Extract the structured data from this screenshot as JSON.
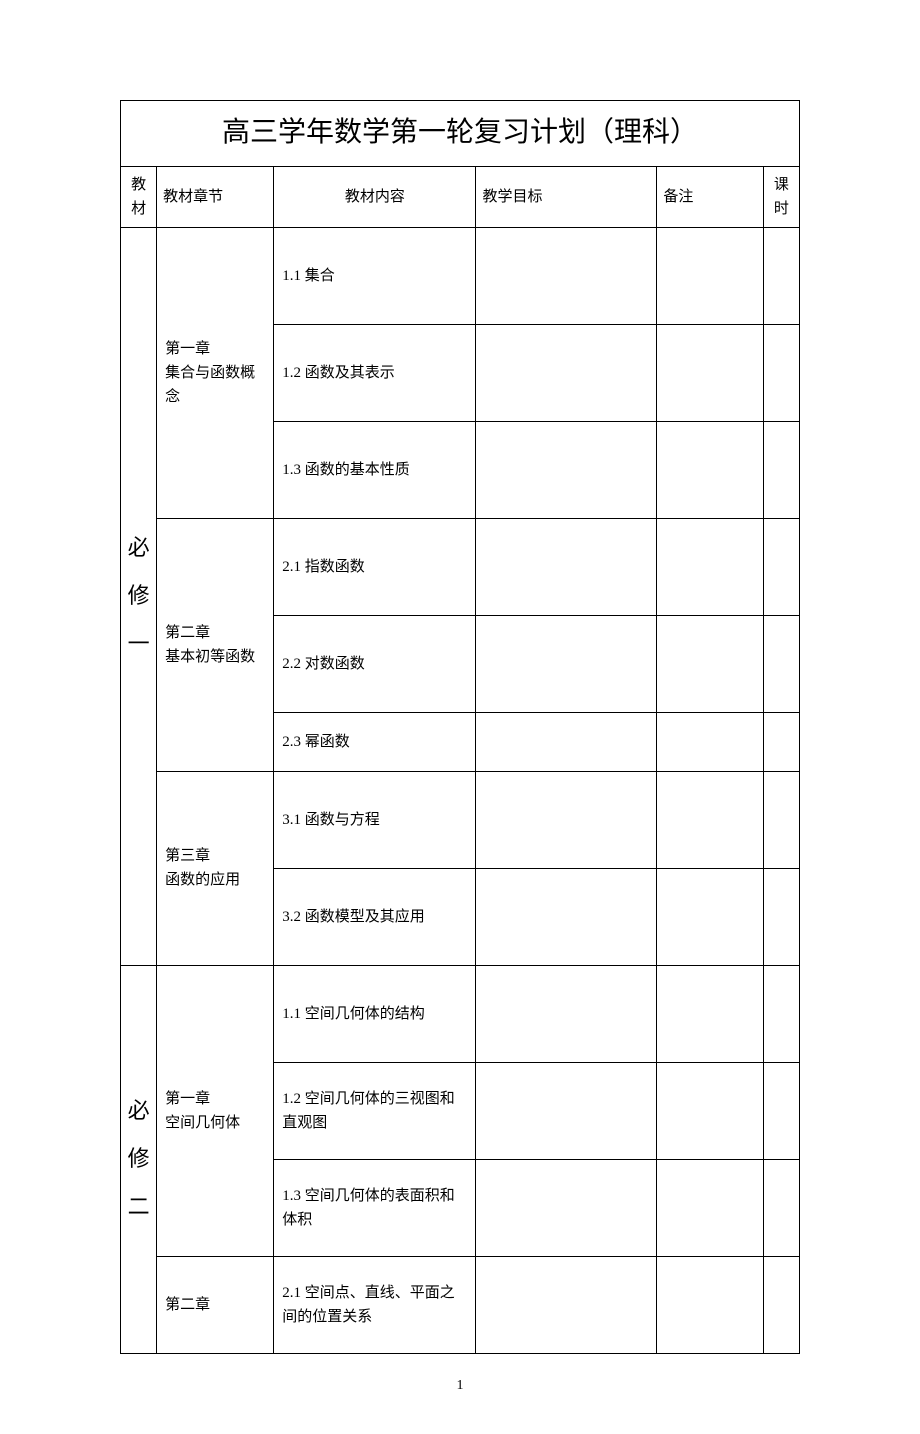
{
  "title": "高三学年数学第一轮复习计划（理科）",
  "headers": {
    "textbook": "教材",
    "chapter": "教材章节",
    "content": "教材内容",
    "goal": "教学目标",
    "note": "备注",
    "hours": "课时"
  },
  "textbooks": [
    {
      "label": "必修一",
      "chapters": [
        {
          "label": "第一章\n集合与函数概念",
          "sections": [
            "1.1 集合",
            "1.2 函数及其表示",
            "1.3 函数的基本性质"
          ]
        },
        {
          "label": "第二章\n基本初等函数",
          "sections": [
            "2.1 指数函数",
            "2.2 对数函数",
            "2.3 幂函数"
          ]
        },
        {
          "label": "第三章\n函数的应用",
          "sections": [
            "3.1 函数与方程",
            "3.2 函数模型及其应用"
          ]
        }
      ]
    },
    {
      "label": "必修二",
      "chapters": [
        {
          "label": "第一章\n空间几何体",
          "sections": [
            "1.1 空间几何体的结构",
            "1.2 空间几何体的三视图和直观图",
            "1.3 空间几何体的表面积和体积"
          ]
        },
        {
          "label": "第二章",
          "sections": [
            "2.1 空间点、直线、平面之间的位置关系"
          ]
        }
      ]
    }
  ],
  "pageNumber": "1",
  "styling": {
    "pageWidth": 920,
    "pageHeight": 1302,
    "borderColor": "#000000",
    "backgroundColor": "#ffffff",
    "textColor": "#000000",
    "titleFontSize": 28,
    "bodyFontSize": 15,
    "verticalLabelFontSize": 22,
    "fontFamily": "SimSun"
  }
}
